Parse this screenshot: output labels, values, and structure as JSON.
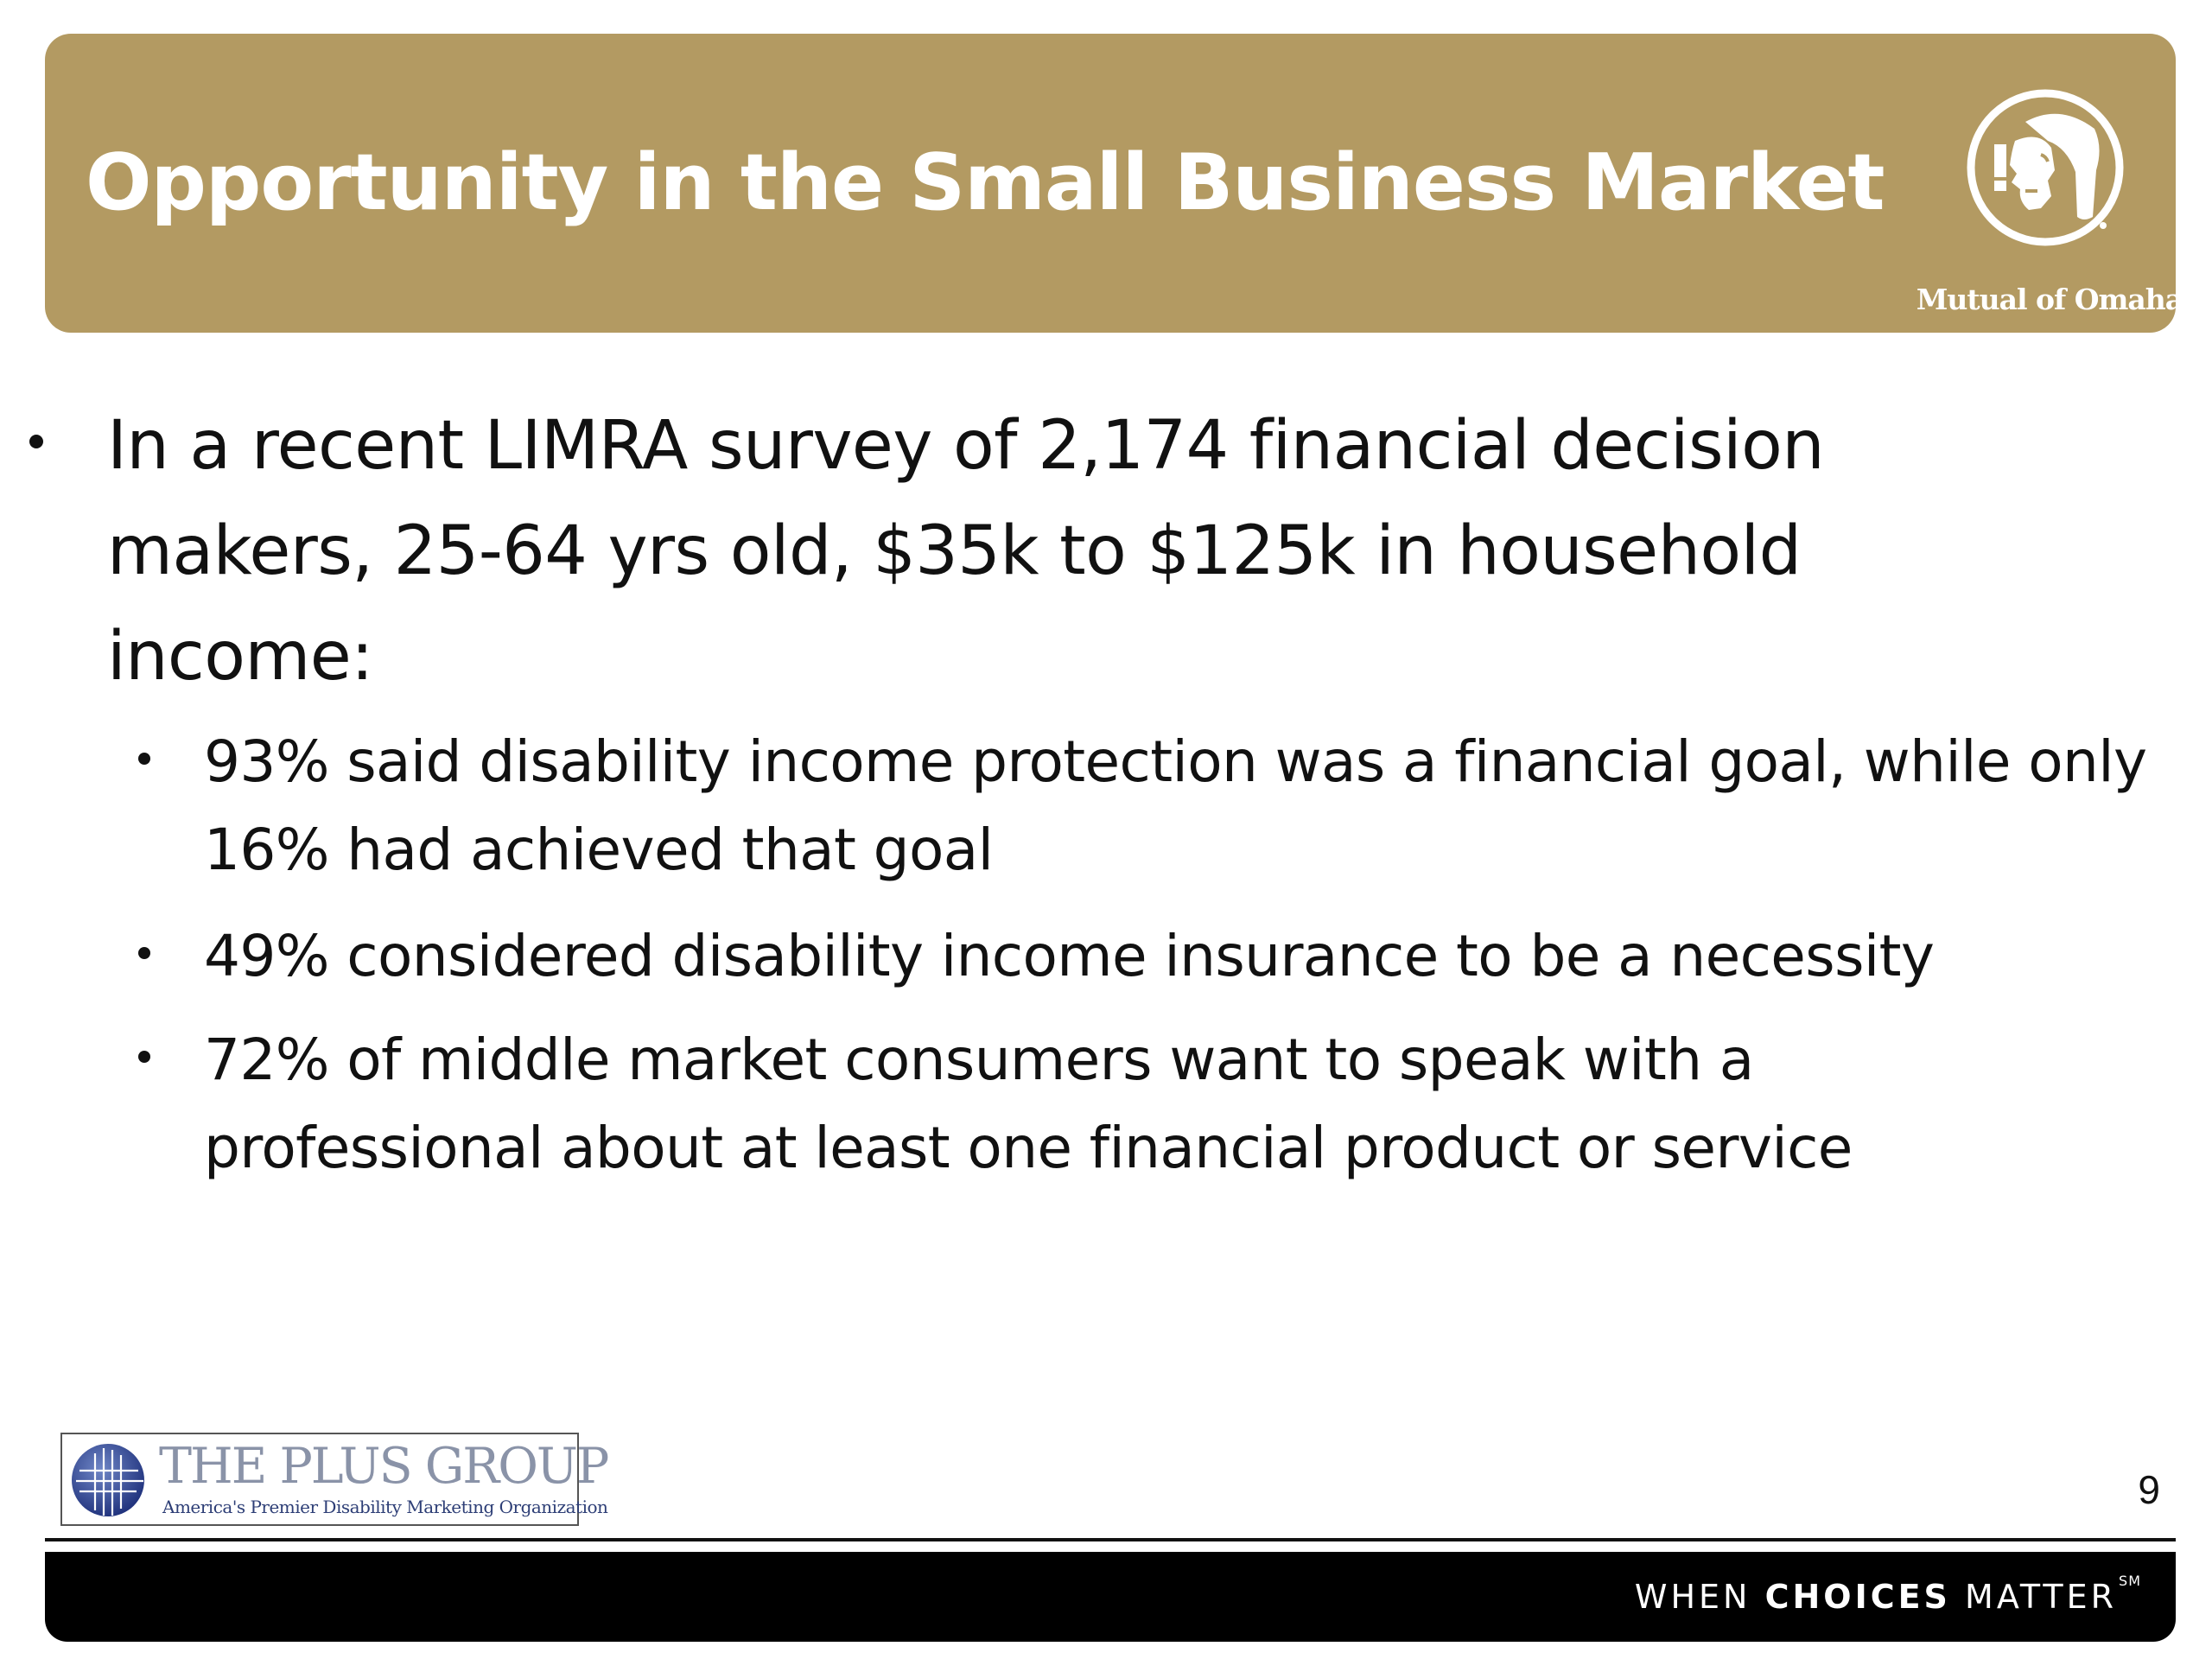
{
  "slide": {
    "title": "Opportunity in the Small Business Market",
    "page_number": "9"
  },
  "brand": {
    "wordmark": "Mutual of Omaha",
    "emblem_icon": "indian-head-emblem-icon",
    "color": "#b39a62"
  },
  "content": {
    "bullets": [
      {
        "text": "In a recent LIMRA survey of 2,174 financial decision makers, 25-64 yrs old, $35k to $125k in household income:",
        "sub_bullets": [
          "93% said disability income protection was a financial goal, while only 16% had achieved that goal",
          "49% considered disability income insurance to be a necessity",
          "72% of middle market consumers want to speak with a professional about at least one financial product or service"
        ]
      }
    ]
  },
  "partner_logo": {
    "name": "THE PLUS GROUP",
    "tagline": "America's Premier Disability Marketing Organization",
    "icon": "globe-grid-icon"
  },
  "footer": {
    "slogan_prefix": "WHEN",
    "slogan_emphasis": "CHOICES",
    "slogan_suffix": "MATTER",
    "slogan_mark": "SM",
    "bar_color": "#000000"
  }
}
